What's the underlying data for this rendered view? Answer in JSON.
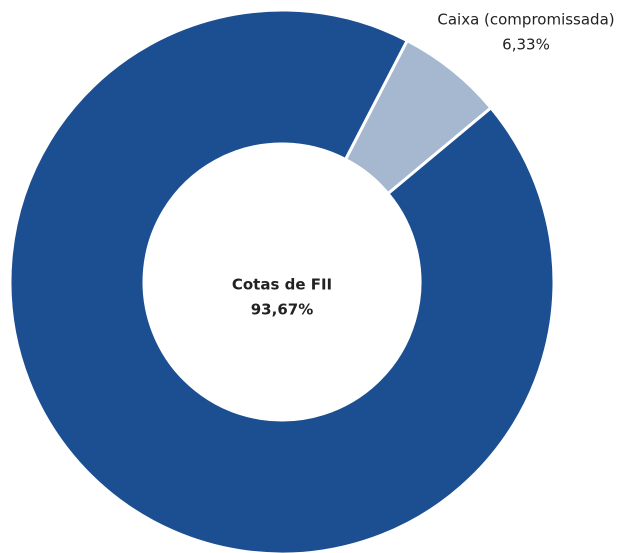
{
  "chart_data": {
    "type": "donut",
    "categories": [
      "Cotas de FII",
      "Caixa (compromissada)"
    ],
    "values": [
      93.67,
      6.33
    ],
    "value_labels": [
      "93,67%",
      "6,33%"
    ],
    "colors": [
      "#1b4f92",
      "#a6b8cf"
    ]
  }
}
